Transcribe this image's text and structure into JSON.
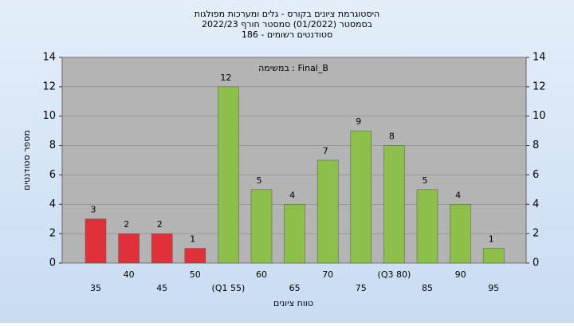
{
  "chart_data": {
    "type": "bar",
    "title": "היסטוגרמת ציונים בקורס - גלים ומערכות מפולגות",
    "subtitle": "בסמסטר (01/2022)  סמסטר חורף 2022/23",
    "subtitle2": "סטודנטים רשומים - 186",
    "annotation": "Final_B : במשימה",
    "xlabel": "טווח ציונים",
    "ylabel": "מספר סטודנטים",
    "categories": [
      "35",
      "40",
      "45",
      "50",
      "(Q1 55)",
      "60",
      "65",
      "70",
      "75",
      "(Q3 80)",
      "85",
      "90",
      "95"
    ],
    "values": [
      3,
      2,
      2,
      1,
      12,
      5,
      4,
      7,
      9,
      8,
      5,
      4,
      1
    ],
    "colors": [
      "#e0303a",
      "#e0303a",
      "#e0303a",
      "#e0303a",
      "#8cc04a",
      "#8cc04a",
      "#8cc04a",
      "#8cc04a",
      "#8cc04a",
      "#8cc04a",
      "#8cc04a",
      "#8cc04a",
      "#8cc04a"
    ],
    "ylim": [
      0,
      14
    ],
    "yticks": [
      0,
      2,
      4,
      6,
      8,
      10,
      12,
      14
    ],
    "y2lim": [
      0,
      14
    ],
    "y2ticks": [
      0,
      2,
      4,
      6,
      8,
      10,
      12,
      14
    ],
    "grid": true
  }
}
